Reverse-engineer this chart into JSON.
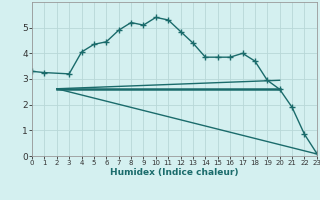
{
  "xlabel": "Humidex (Indice chaleur)",
  "background_color": "#d4f0f0",
  "grid_color": "#b8d8d8",
  "line_color": "#1a6b6b",
  "xlim": [
    0,
    23
  ],
  "ylim": [
    0,
    6
  ],
  "xticks": [
    0,
    1,
    2,
    3,
    4,
    5,
    6,
    7,
    8,
    9,
    10,
    11,
    12,
    13,
    14,
    15,
    16,
    17,
    18,
    19,
    20,
    21,
    22,
    23
  ],
  "yticks": [
    0,
    1,
    2,
    3,
    4,
    5
  ],
  "curve1_x": [
    0,
    1,
    3,
    4,
    5,
    6,
    7,
    8,
    9,
    10,
    11,
    12,
    13,
    14,
    15,
    16,
    17,
    18,
    19,
    20,
    21,
    22,
    23
  ],
  "curve1_y": [
    3.3,
    3.25,
    3.2,
    4.05,
    4.35,
    4.45,
    4.9,
    5.2,
    5.1,
    5.4,
    5.3,
    4.85,
    4.4,
    3.85,
    3.85,
    3.85,
    4.0,
    3.7,
    2.95,
    2.6,
    1.9,
    0.85,
    0.1
  ],
  "curve2_x": [
    2,
    20
  ],
  "curve2_y": [
    2.62,
    2.62
  ],
  "curve3_x": [
    2,
    20
  ],
  "curve3_y": [
    2.62,
    2.95
  ],
  "curve4_x": [
    2,
    23
  ],
  "curve4_y": [
    2.62,
    0.08
  ]
}
